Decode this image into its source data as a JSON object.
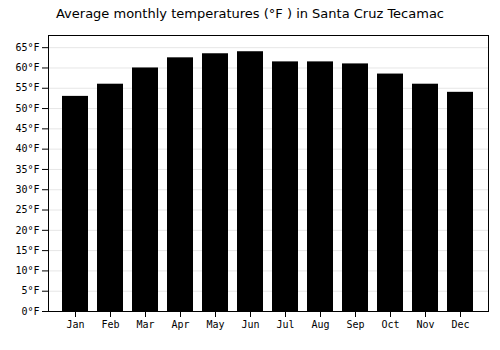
{
  "chart_data": {
    "type": "bar",
    "title": "Average monthly temperatures (°F ) in Santa Cruz Tecamac",
    "categories": [
      "Jan",
      "Feb",
      "Mar",
      "Apr",
      "May",
      "Jun",
      "Jul",
      "Aug",
      "Sep",
      "Oct",
      "Nov",
      "Dec"
    ],
    "values": [
      53,
      56,
      60,
      62.5,
      63.5,
      64,
      61.5,
      61.5,
      61,
      58.5,
      56,
      54
    ],
    "ylim": [
      0,
      68
    ],
    "yticks": [
      {
        "value": 0,
        "label": "0°F"
      },
      {
        "value": 5,
        "label": "5°F"
      },
      {
        "value": 10,
        "label": "10°F"
      },
      {
        "value": 15,
        "label": "15°F"
      },
      {
        "value": 20,
        "label": "20°F"
      },
      {
        "value": 25,
        "label": "25°F"
      },
      {
        "value": 30,
        "label": "30°F"
      },
      {
        "value": 35,
        "label": "35°F"
      },
      {
        "value": 40,
        "label": "40°F"
      },
      {
        "value": 45,
        "label": "45°F"
      },
      {
        "value": 50,
        "label": "50°F"
      },
      {
        "value": 55,
        "label": "55°F"
      },
      {
        "value": 60,
        "label": "60°F"
      },
      {
        "value": 65,
        "label": "65°F"
      }
    ],
    "grid": true
  }
}
